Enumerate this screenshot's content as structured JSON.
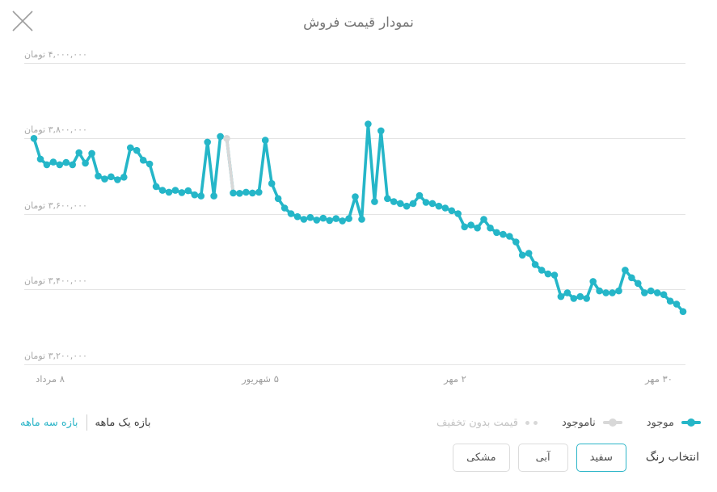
{
  "header": {
    "title": "نمودار قیمت فروش"
  },
  "colors": {
    "accent_teal": "#25b6c8",
    "unavailable_gray": "#d8d8d8",
    "gridline": "#e4e4e4"
  },
  "chart_data": {
    "type": "line",
    "title": "نمودار قیمت فروش",
    "unit": "تومان",
    "grid": true,
    "y_axis": {
      "min": 3150000,
      "max": 4050000,
      "ticks": [
        {
          "value": 4000000,
          "label": "۴,۰۰۰,۰۰۰ تومان"
        },
        {
          "value": 3800000,
          "label": "۳,۸۰۰,۰۰۰ تومان"
        },
        {
          "value": 3600000,
          "label": "۳,۶۰۰,۰۰۰ تومان"
        },
        {
          "value": 3400000,
          "label": "۳,۴۰۰,۰۰۰ تومان"
        },
        {
          "value": 3200000,
          "label": "۳,۲۰۰,۰۰۰ تومان"
        }
      ]
    },
    "x_axis": {
      "ticks": [
        {
          "label": "۸ مرداد",
          "pos": 0.039
        },
        {
          "label": "۵ شهریور",
          "pos": 0.357
        },
        {
          "label": "۲ مهر",
          "pos": 0.651
        },
        {
          "label": "۳۰ مهر",
          "pos": 0.959
        }
      ]
    },
    "series": [
      {
        "name": "قیمت فروش",
        "color": "#25b6c8",
        "unavailable_color": "#d8d8d8",
        "unavailable_indices": [
          30
        ],
        "values": [
          3800000,
          3745000,
          3730000,
          3737000,
          3730000,
          3736000,
          3730000,
          3762000,
          3734000,
          3760000,
          3700000,
          3692000,
          3698000,
          3690000,
          3697000,
          3775000,
          3768000,
          3742000,
          3732000,
          3672000,
          3662000,
          3657000,
          3662000,
          3656000,
          3661000,
          3650000,
          3647000,
          3790000,
          3647000,
          3805000,
          3800000,
          3655000,
          3654000,
          3657000,
          3655000,
          3657000,
          3795000,
          3680000,
          3640000,
          3615000,
          3600000,
          3592000,
          3585000,
          3590000,
          3583000,
          3588000,
          3582000,
          3587000,
          3581000,
          3587000,
          3645000,
          3585000,
          3838000,
          3632000,
          3820000,
          3640000,
          3632000,
          3627000,
          3620000,
          3627000,
          3648000,
          3630000,
          3627000,
          3620000,
          3615000,
          3608000,
          3600000,
          3565000,
          3570000,
          3562000,
          3585000,
          3562000,
          3550000,
          3545000,
          3540000,
          3525000,
          3490000,
          3495000,
          3465000,
          3450000,
          3440000,
          3437000,
          3380000,
          3390000,
          3375000,
          3380000,
          3375000,
          3420000,
          3395000,
          3390000,
          3390000,
          3395000,
          3450000,
          3430000,
          3415000,
          3390000,
          3395000,
          3390000,
          3385000,
          3368000,
          3360000,
          3340000
        ]
      }
    ],
    "legend_position": "bottom-right"
  },
  "legend": {
    "items": [
      {
        "label": "موجود",
        "marker": "line-dot",
        "color": "#25b6c8"
      },
      {
        "label": "ناموجود",
        "marker": "line-dot",
        "color": "#d8d8d8"
      },
      {
        "label": "قیمت بدون تخفیف",
        "marker": "dots",
        "color": "#d8d8d8"
      }
    ]
  },
  "range_switch": {
    "active": "بازه یک ماهه",
    "link": "بازه سه ماهه"
  },
  "color_picker": {
    "label": "انتخاب رنگ",
    "options": [
      {
        "label": "سفید",
        "selected": true
      },
      {
        "label": "آبی",
        "selected": false
      },
      {
        "label": "مشکی",
        "selected": false
      }
    ]
  }
}
